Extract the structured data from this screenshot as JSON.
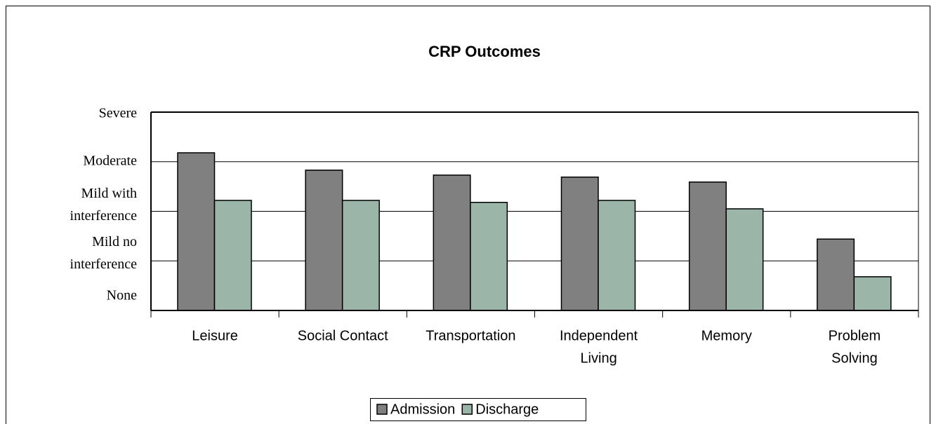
{
  "chart_data": {
    "type": "bar",
    "title": "CRP Outcomes",
    "categories": [
      "Leisure",
      "Social Contact",
      "Transportation",
      "Independent Living",
      "Memory",
      "Problem Solving"
    ],
    "series": [
      {
        "name": "Admission",
        "color": "#808080",
        "values": [
          4.18,
          3.83,
          3.73,
          3.69,
          3.59,
          2.44
        ]
      },
      {
        "name": "Discharge",
        "color": "#9cb5a9",
        "values": [
          3.22,
          3.22,
          3.18,
          3.22,
          3.05,
          1.68
        ]
      }
    ],
    "ylim": [
      1,
      5
    ],
    "yticks": [
      {
        "value": 1,
        "label": "None"
      },
      {
        "value": 2,
        "label": "Mild no interference"
      },
      {
        "value": 3,
        "label": "Mild with interference"
      },
      {
        "value": 4,
        "label": "Moderate"
      },
      {
        "value": 5,
        "label": "Severe"
      }
    ],
    "grid": true,
    "legend": "bottom"
  }
}
